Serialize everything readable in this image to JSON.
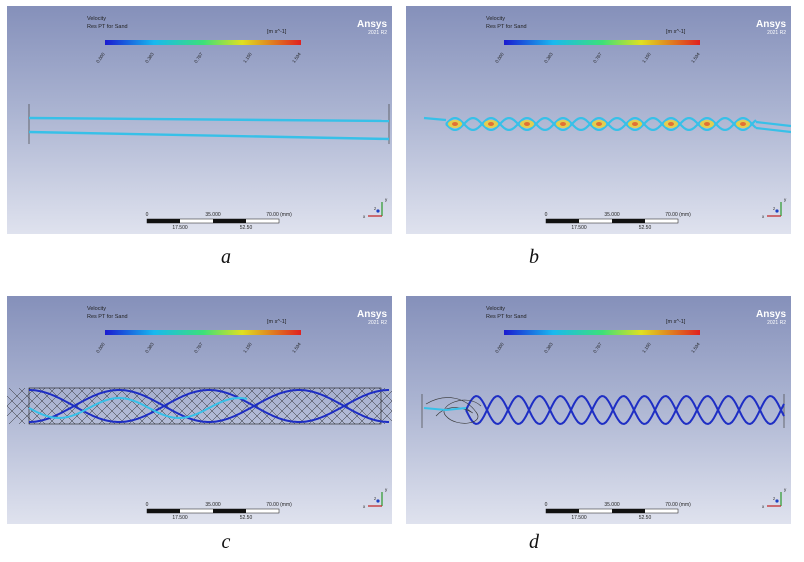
{
  "common": {
    "variable": "Velocity",
    "subtitle": "Res PT for Sand",
    "units": "[m s^-1]",
    "legend_ticks": [
      "0.000",
      "0.383",
      "0.767",
      "1.150",
      "1.534"
    ],
    "brand": "Ansys",
    "version": "2021 R2",
    "scale_top": [
      "0",
      "35.000",
      "70.00  (mm)"
    ],
    "scale_bottom": [
      "17.500",
      "52.50"
    ],
    "axis_labels": [
      "y",
      "z",
      "x"
    ]
  },
  "captions": [
    "a",
    "b",
    "c",
    "d"
  ],
  "colors": {
    "background_top": "#8590ba",
    "background_bottom": "#dfe2ee",
    "stream_cyan": "#37c0e8",
    "stream_blue": "#1e2ec4",
    "mesh": "#1a1a1a",
    "brand": "#ffffff"
  },
  "panels": [
    {
      "id": "a",
      "view": "straight-streamlines"
    },
    {
      "id": "b",
      "view": "braided-streamlines"
    },
    {
      "id": "c",
      "view": "wire-mesh-helix"
    },
    {
      "id": "d",
      "view": "double-helix"
    }
  ]
}
